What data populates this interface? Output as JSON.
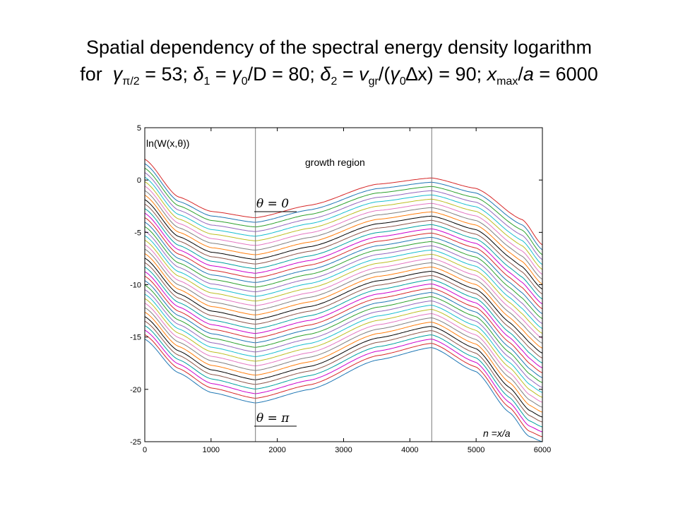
{
  "title_line1": "Spatial dependency of the spectral energy density logarithm",
  "title_line2": {
    "prefix": "for",
    "gamma": "γ",
    "gamma_sub": "π/2",
    "part1": " = 53; ",
    "delta": "δ",
    "delta1_sub": "1",
    "part2": " = ",
    "gamma0": "γ",
    "zero_sub": "0",
    "part3": "/D = 80; ",
    "delta2_sub": "2",
    "part4": " = ",
    "v": "v",
    "gr_sub": "gr",
    "part5": "/(",
    "part6": "∆x) = 90; ",
    "x": "x",
    "max_sub": "max",
    "part7": "/",
    "a": "a",
    "part8": " = 6000"
  },
  "chart_data": {
    "type": "line",
    "title": "",
    "ylabel_text": "ln(W(x,θ))",
    "xlabel_text": "n =x/a",
    "xlim": [
      0,
      6000
    ],
    "ylim": [
      -25,
      5
    ],
    "xticks": [
      0,
      1000,
      2000,
      3000,
      4000,
      5000,
      6000
    ],
    "yticks": [
      -25,
      -20,
      -15,
      -10,
      -5,
      0,
      5
    ],
    "grid": false,
    "vertical_lines": [
      1670,
      4330
    ],
    "annotations": {
      "growth_region": "growth region",
      "theta_zero": "θ = 0",
      "theta_pi": "θ = π"
    },
    "family": {
      "description_parameter": "theta from 0 to pi",
      "curve_count": 41,
      "top_curve_points": [
        [
          0,
          2.0
        ],
        [
          500,
          -1.6
        ],
        [
          1000,
          -3.0
        ],
        [
          1670,
          -3.6
        ],
        [
          2500,
          -2.4
        ],
        [
          3500,
          -0.4
        ],
        [
          4330,
          0.2
        ],
        [
          5000,
          -0.8
        ],
        [
          5700,
          -3.8
        ],
        [
          6000,
          -6.2
        ]
      ],
      "bottom_curve_points": [
        [
          0,
          -15.2
        ],
        [
          500,
          -18.4
        ],
        [
          1000,
          -20.3
        ],
        [
          1670,
          -21.3
        ],
        [
          2500,
          -20.0
        ],
        [
          3500,
          -17.2
        ],
        [
          4330,
          -16.0
        ],
        [
          5000,
          -18.3
        ],
        [
          5500,
          -22.2
        ],
        [
          5800,
          -24.5
        ],
        [
          6000,
          -25.0
        ]
      ],
      "colors": [
        "#d62728",
        "#1f77b4",
        "#2ca02c",
        "#9467bd",
        "#17becf",
        "#bcbd22",
        "#e377c2",
        "#7f7f7f",
        "#ff7f0e",
        "#000000",
        "#8c564b",
        "#00a0a0",
        "#cc00cc"
      ]
    }
  }
}
